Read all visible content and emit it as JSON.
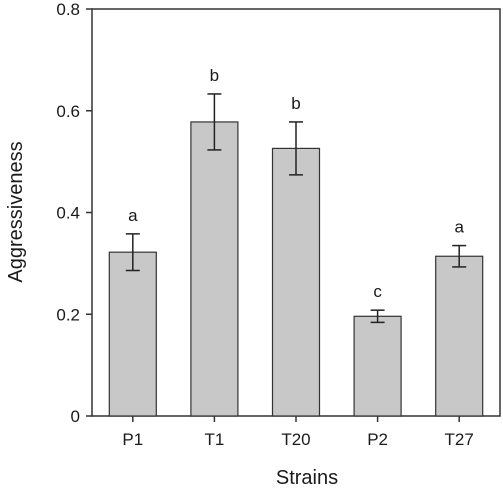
{
  "chart_data": {
    "type": "bar",
    "title": "",
    "xlabel": "Strains",
    "ylabel": "Aggressiveness",
    "categories": [
      "P1",
      "T1",
      "T20",
      "P2",
      "T27"
    ],
    "values": [
      0.322,
      0.578,
      0.526,
      0.196,
      0.314
    ],
    "error": [
      0.036,
      0.055,
      0.052,
      0.012,
      0.021
    ],
    "significance": [
      "a",
      "b",
      "b",
      "c",
      "a"
    ],
    "ylim": [
      0,
      0.8
    ],
    "yticks": [
      0,
      0.2,
      0.4,
      0.6,
      0.8
    ],
    "ytick_labels": [
      "0",
      "0.2",
      "0.4",
      "0.6",
      "0.8"
    ],
    "grid": false,
    "bar_color": "#c8c8c8",
    "edge_color": "#333333"
  }
}
